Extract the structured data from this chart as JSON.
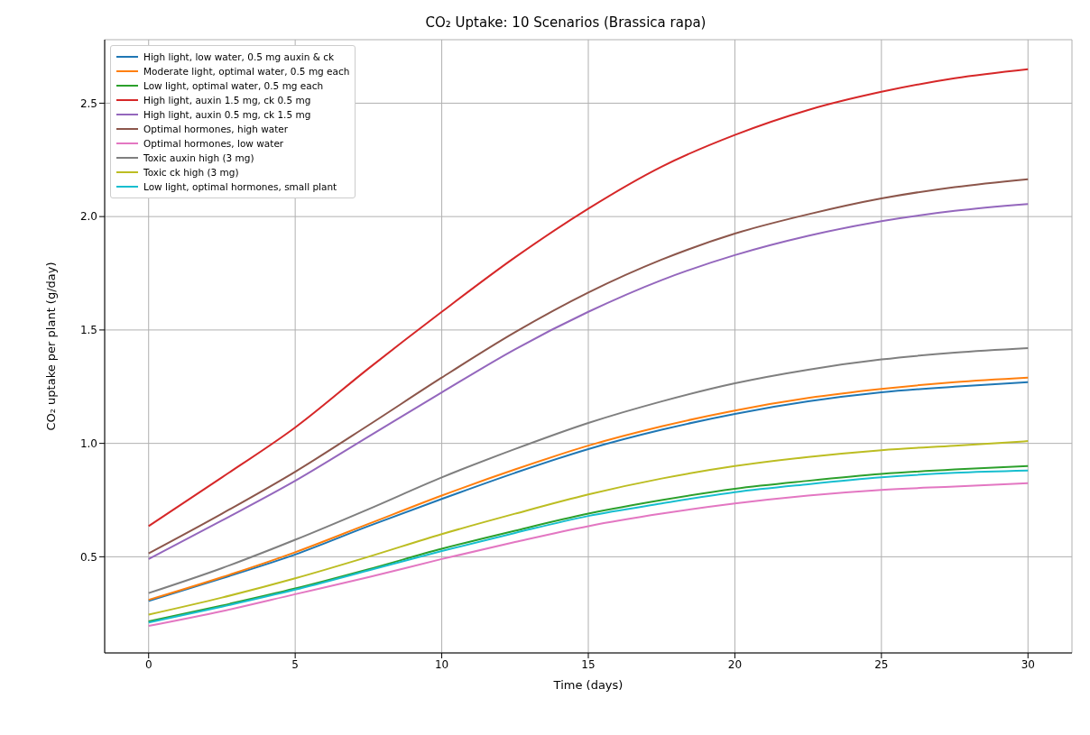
{
  "chart_data": {
    "type": "line",
    "title": "CO₂ Uptake: 10 Scenarios (Brassica rapa)",
    "xlabel": "Time (days)",
    "ylabel": "CO₂ uptake per plant (g/day)",
    "x": [
      0,
      2.5,
      5,
      7.5,
      10,
      12.5,
      15,
      17.5,
      20,
      22.5,
      25,
      27.5,
      30
    ],
    "xlim": [
      -1.5,
      31.5
    ],
    "xticks": [
      0,
      5,
      10,
      15,
      20,
      25,
      30
    ],
    "ylim": [
      0.076,
      2.78
    ],
    "yticks": [
      {
        "value": 0.5,
        "label": "0.5"
      },
      {
        "value": 1,
        "label": "1.0"
      },
      {
        "value": 1.5,
        "label": "1.5"
      },
      {
        "value": 2,
        "label": "2.0"
      },
      {
        "value": 2.5,
        "label": "2.5"
      }
    ],
    "grid": true,
    "legend": "top left",
    "marker": "none",
    "line_style": "solid",
    "series": [
      {
        "name": "High light, low water, 0.5 mg auxin & ck",
        "color": "#1f77b4",
        "values": [
          0.305,
          0.405,
          0.51,
          0.635,
          0.755,
          0.87,
          0.975,
          1.06,
          1.13,
          1.185,
          1.225,
          1.25,
          1.27
        ]
      },
      {
        "name": "Moderate light, optimal water, 0.5 mg each",
        "color": "#ff7f0e",
        "values": [
          0.31,
          0.41,
          0.52,
          0.645,
          0.77,
          0.885,
          0.99,
          1.075,
          1.145,
          1.2,
          1.24,
          1.27,
          1.29
        ]
      },
      {
        "name": "Low light, optimal water, 0.5 mg each",
        "color": "#2ca02c",
        "values": [
          0.215,
          0.285,
          0.36,
          0.445,
          0.535,
          0.615,
          0.69,
          0.75,
          0.8,
          0.835,
          0.865,
          0.885,
          0.9
        ]
      },
      {
        "name": "High light, auxin 1.5 mg, ck 0.5 mg",
        "color": "#d62728",
        "values": [
          0.635,
          0.85,
          1.07,
          1.33,
          1.58,
          1.82,
          2.035,
          2.22,
          2.36,
          2.47,
          2.55,
          2.61,
          2.65
        ]
      },
      {
        "name": "High light, auxin 0.5 mg, ck 1.5 mg",
        "color": "#9467bd",
        "values": [
          0.49,
          0.66,
          0.835,
          1.03,
          1.225,
          1.415,
          1.58,
          1.72,
          1.83,
          1.915,
          1.98,
          2.025,
          2.055
        ]
      },
      {
        "name": "Optimal hormones, high water",
        "color": "#8c564b",
        "values": [
          0.515,
          0.69,
          0.875,
          1.08,
          1.29,
          1.49,
          1.665,
          1.81,
          1.925,
          2.01,
          2.08,
          2.13,
          2.165
        ]
      },
      {
        "name": "Optimal hormones, low water",
        "color": "#e377c2",
        "values": [
          0.195,
          0.26,
          0.335,
          0.41,
          0.49,
          0.565,
          0.635,
          0.69,
          0.735,
          0.77,
          0.795,
          0.81,
          0.825
        ]
      },
      {
        "name": "Toxic auxin high (3 mg)",
        "color": "#7f7f7f",
        "values": [
          0.34,
          0.45,
          0.575,
          0.71,
          0.85,
          0.975,
          1.09,
          1.185,
          1.265,
          1.325,
          1.37,
          1.4,
          1.42
        ]
      },
      {
        "name": "Toxic ck high (3 mg)",
        "color": "#bcbd22",
        "values": [
          0.245,
          0.32,
          0.405,
          0.5,
          0.6,
          0.69,
          0.775,
          0.845,
          0.9,
          0.94,
          0.97,
          0.99,
          1.01
        ]
      },
      {
        "name": "Low light, optimal hormones, small plant",
        "color": "#17becf",
        "values": [
          0.21,
          0.28,
          0.355,
          0.44,
          0.525,
          0.605,
          0.68,
          0.735,
          0.785,
          0.82,
          0.85,
          0.87,
          0.88
        ]
      }
    ]
  }
}
